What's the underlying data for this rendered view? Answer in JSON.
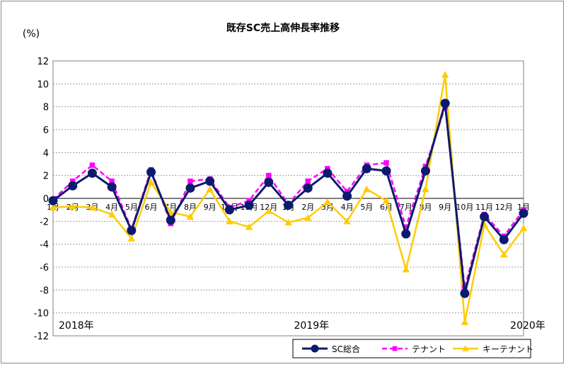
{
  "chart_data": {
    "type": "line",
    "title": "既存SC売上高伸長率推移",
    "ylabel": "(%)",
    "ylim": [
      -12,
      12
    ],
    "yticks": [
      12,
      10,
      8,
      6,
      4,
      2,
      0,
      -2,
      -4,
      -6,
      -8,
      -10,
      -12
    ],
    "grid": true,
    "legend_position": "bottom-right",
    "categories": [
      "1月",
      "2月",
      "3月",
      "4月",
      "5月",
      "6月",
      "7月",
      "8月",
      "9月",
      "10月",
      "11月",
      "12月",
      "1月",
      "2月",
      "3月",
      "4月",
      "5月",
      "6月",
      "7月",
      "8月",
      "9月",
      "10月",
      "11月",
      "12月",
      "1月"
    ],
    "year_labels": [
      {
        "label": "2018年",
        "index": 0
      },
      {
        "label": "2019年",
        "index": 12
      },
      {
        "label": "2020年",
        "index": 24
      }
    ],
    "series": [
      {
        "name": "SC総合",
        "color": "#0c1a6e",
        "marker": "circle",
        "dash": "none",
        "values": [
          -0.2,
          1.1,
          2.2,
          1.0,
          -2.8,
          2.3,
          -1.9,
          0.9,
          1.5,
          -1.0,
          -0.6,
          1.4,
          -0.6,
          0.9,
          2.2,
          0.2,
          2.6,
          2.4,
          -3.1,
          2.4,
          8.3,
          -8.3,
          -1.6,
          -3.6,
          -1.3
        ]
      },
      {
        "name": "テナント",
        "color": "#ff00ff",
        "marker": "square",
        "dash": "dashed",
        "values": [
          -0.1,
          1.5,
          2.9,
          1.5,
          -2.7,
          2.5,
          -2.2,
          1.5,
          1.7,
          -0.8,
          -0.2,
          2.0,
          -0.5,
          1.5,
          2.6,
          0.6,
          2.9,
          3.1,
          -2.5,
          2.8,
          8.0,
          -7.8,
          -1.4,
          -3.3,
          -1.0
        ]
      },
      {
        "name": "キーテナント",
        "color": "#ffcc00",
        "marker": "triangle",
        "dash": "none",
        "values": [
          -0.8,
          -0.7,
          -0.8,
          -1.4,
          -3.5,
          1.4,
          -1.2,
          -1.6,
          0.8,
          -2.0,
          -2.5,
          -1.1,
          -2.1,
          -1.7,
          -0.3,
          -2.0,
          0.8,
          -0.2,
          -6.2,
          0.8,
          10.8,
          -10.8,
          -2.3,
          -4.9,
          -2.6
        ]
      }
    ]
  }
}
